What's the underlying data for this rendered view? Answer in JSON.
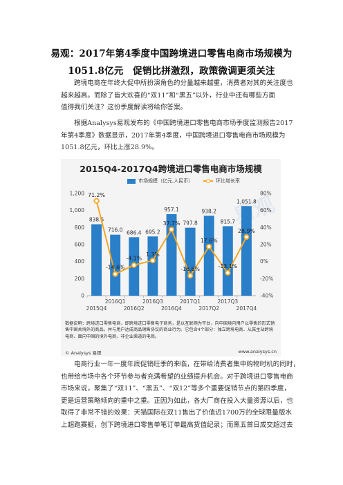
{
  "article": {
    "title_line1": "易观：2017年第4季度中国跨境进口零售电商市场规模为",
    "title_line2": "1051.8亿元　促销比拼激烈，政策微调更须关注",
    "p1": [
      "跨境电商在年终大促中所扮演角色的分量越来越重，消费者对其的关注度也",
      "越来越高。而除了皆大欢喜的“双11”和“黑五”以外，行业中还有哪些方面",
      "值得我们关注？这份季度解读将给你答案。"
    ],
    "p2": [
      "根据Analysys易观发布的《中国跨境进口零售电商市场季度监测报告2017",
      "年第4季度》数据显示，2017年第4季度，中国跨境进口零售电商市场规模为",
      "1051.8亿元，环比上涨28.9%。"
    ],
    "p3": [
      "电商行业一年一度年底促销旺季的来临，在带给消费者集中购物时机的同时，",
      "也带给市场中各个环节参与者充满希望的业绩提升机会。对于跨境进口零售电商",
      "市场来说，聚集了“双11”、“黑五”、“双12”等多个重要促销节点的第四季度，",
      "更是运营策略倾向的重中之重。正因为如此，各大厂商在投入大量资源以后，也",
      "取得了非常不错的效果：天猫国际在双11售出了价值近1700万的全球限量版水",
      "上超跑赛艇，创下跨境进口零售单笔订单最高货值纪录；而黑五首日成交超过去"
    ]
  },
  "chart_data": {
    "type": "bar+line",
    "title": "2015Q4-2017Q4跨境进口零售电商市场规模",
    "legend": [
      "市场规模（亿元,人民币）",
      "环比增长率"
    ],
    "legend_placement": "top",
    "categories": [
      "2015Q4",
      "2016Q1",
      "2016Q2",
      "2016Q3",
      "2016Q4",
      "2017Q1",
      "2017Q2",
      "2017Q3",
      "2017Q4"
    ],
    "series": [
      {
        "name": "市场规模（亿元,人民币）",
        "type": "bar",
        "axis": "left",
        "values": [
          838.5,
          716.0,
          686.4,
          695.2,
          957.1,
          797.8,
          938.2,
          815.7,
          1051.8
        ],
        "labels": [
          "838.5",
          "716.0",
          "686.4",
          "695.2",
          "957.1",
          "797.8",
          "938.2",
          "815.7",
          "1,051.8"
        ]
      },
      {
        "name": "环比增长率",
        "type": "line",
        "axis": "right",
        "values": [
          71.2,
          -14.6,
          -4.1,
          1.3,
          37.7,
          -16.6,
          17.6,
          -13.1,
          28.9
        ],
        "labels": [
          "71.2%",
          "-14.6%",
          "-4.1%",
          "1.3%",
          "37.7%",
          "-16.6%",
          "17.6%",
          "-13.1%",
          "28.9%"
        ]
      }
    ],
    "y_left": {
      "ticks": [
        0,
        200,
        400,
        600,
        800,
        1000,
        1200
      ],
      "tick_labels": [
        "0",
        "200",
        "400",
        "600",
        "800",
        "1,000",
        "1,200"
      ],
      "ylim": [
        0,
        1200
      ]
    },
    "y_right": {
      "ticks": [
        -40,
        -20,
        0,
        20,
        40,
        60,
        80
      ],
      "tick_labels": [
        "-40%",
        "-20%",
        "0%",
        "20%",
        "40%",
        "60%",
        "80%"
      ],
      "ylim": [
        -40,
        80
      ]
    },
    "grid": false,
    "colors": {
      "bar": "#2a7fc9",
      "line": "#f5a623"
    },
    "data_source": "数据说明：跨境进口零售电商，即跨境进口零售电子商务，是以互联网为平台，向中国境内用户以零售的形式销售中国关境外的商品，并与用户达成商品销售协议的商业行为。它包含4个部分：独立跨境电商、从属主站跨境电商、面向中国的境外电商、非企业渠道的电商。",
    "footer_left": "© Analysys 易观",
    "footer_right": "www.analysys.cn",
    "watermark": "易观"
  }
}
